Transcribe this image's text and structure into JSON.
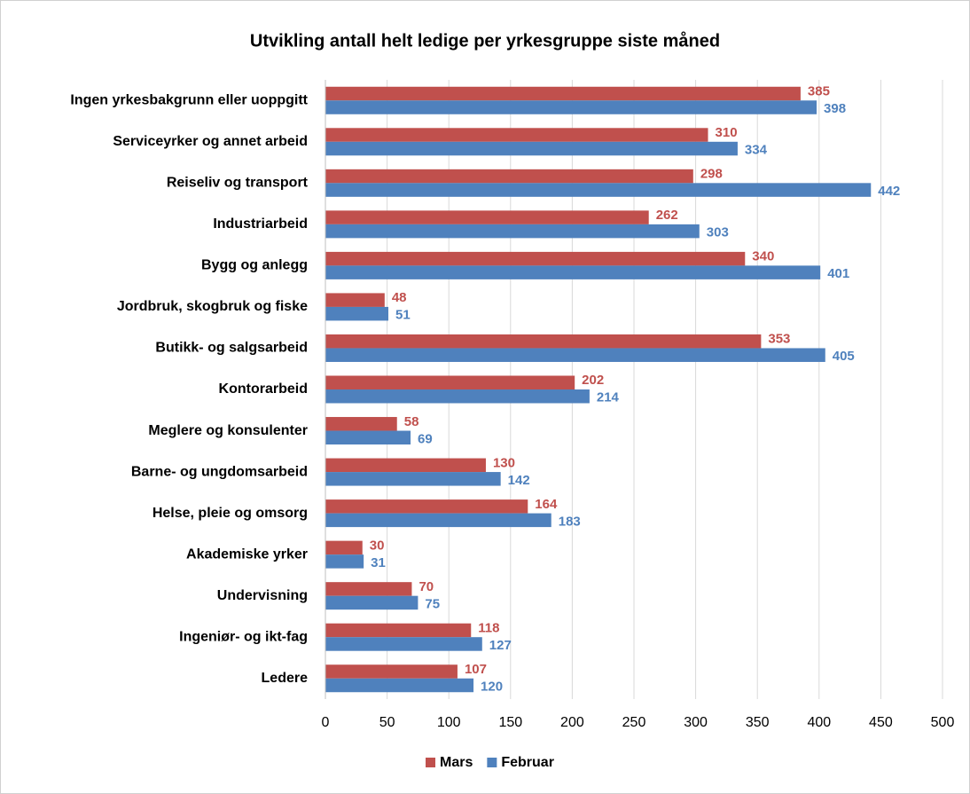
{
  "chart_data": {
    "type": "bar",
    "orientation": "horizontal",
    "title": "Utvikling antall helt ledige per yrkesgruppe siste måned",
    "categories": [
      "Ingen yrkesbakgrunn eller uoppgitt",
      "Serviceyrker og annet arbeid",
      "Reiseliv og transport",
      "Industriarbeid",
      "Bygg og anlegg",
      "Jordbruk, skogbruk og fiske",
      "Butikk- og salgsarbeid",
      "Kontorarbeid",
      "Meglere og konsulenter",
      "Barne- og ungdomsarbeid",
      "Helse, pleie og omsorg",
      "Akademiske yrker",
      "Undervisning",
      "Ingeniør- og ikt-fag",
      "Ledere"
    ],
    "series": [
      {
        "name": "Mars",
        "color": "#c0504d",
        "values": [
          385,
          310,
          298,
          262,
          340,
          48,
          353,
          202,
          58,
          130,
          164,
          30,
          70,
          118,
          107
        ]
      },
      {
        "name": "Februar",
        "color": "#4f81bd",
        "values": [
          398,
          334,
          442,
          303,
          401,
          51,
          405,
          214,
          69,
          142,
          183,
          31,
          75,
          127,
          120
        ]
      }
    ],
    "xlim": [
      0,
      500
    ],
    "xticks": [
      0,
      50,
      100,
      150,
      200,
      250,
      300,
      350,
      400,
      450,
      500
    ],
    "grid": true,
    "legend": "bottom"
  }
}
